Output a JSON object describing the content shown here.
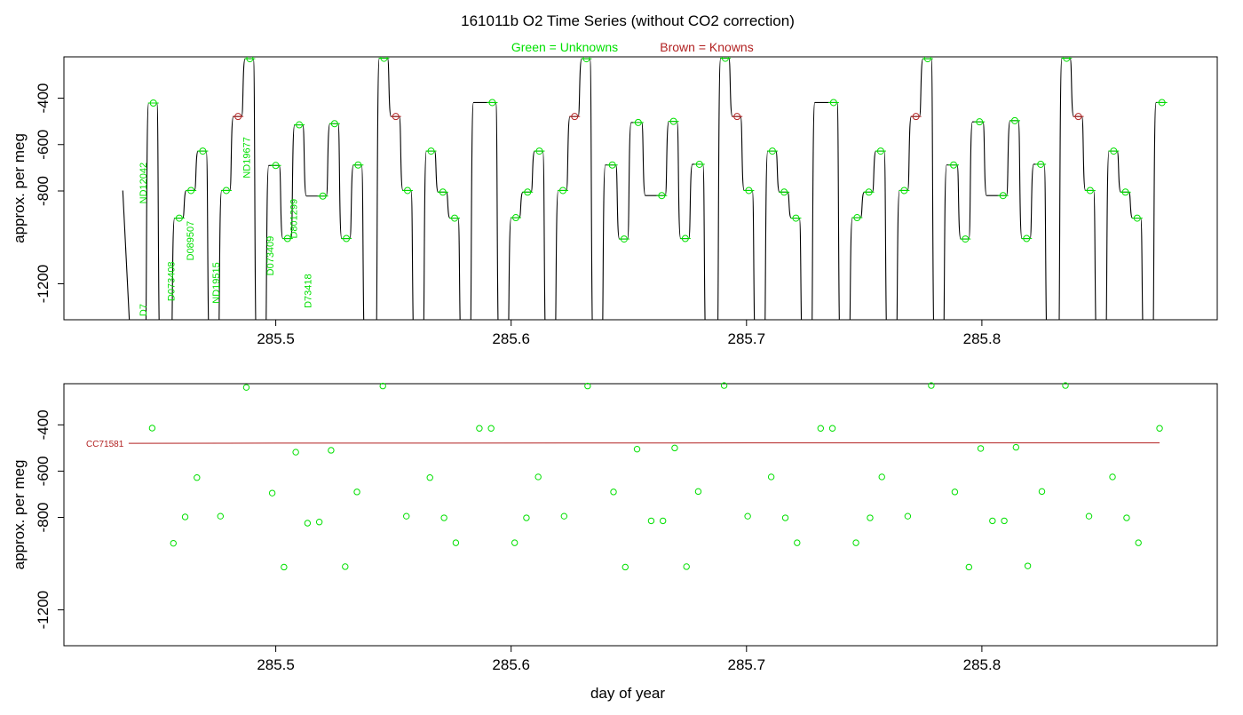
{
  "title": "161011b   O2 Time Series (without CO2 correction)",
  "legend": {
    "unknowns": "Green = Unknowns",
    "knowns": "Brown = Knowns"
  },
  "colors": {
    "unknown": "#00e000",
    "known": "#b22222",
    "trace": "#000000"
  },
  "xlabel": "day of year",
  "chart_data": [
    {
      "type": "line",
      "panel": "top",
      "ylabel": "approx. per meg",
      "xlim": [
        285.41,
        285.9
      ],
      "ylim": [
        -1355,
        -222
      ],
      "y_reversed": true,
      "xticks": [
        285.5,
        285.6,
        285.7,
        285.8
      ],
      "xtick_labels": [
        "285.5",
        "285.6",
        "285.7",
        "285.8"
      ],
      "yticks": [
        -400,
        -600,
        -800,
        -1200
      ],
      "ytick_labels": [
        "-400",
        "-600",
        "-800",
        "-1200"
      ],
      "trace_end_x": 285.878,
      "trace_start": {
        "x": 285.435,
        "y": -798
      },
      "segments": [
        {
          "x0": 285.4385,
          "x1": 285.4445,
          "y": -1500,
          "kind": "gap"
        },
        {
          "x0": 285.4445,
          "x1": 285.4495,
          "y": -421,
          "kind": "unknown"
        },
        {
          "x0": 285.4495,
          "x1": 285.4555,
          "y": -1500,
          "kind": "gap"
        },
        {
          "x0": 285.4555,
          "x1": 285.4605,
          "y": -917,
          "kind": "unknown"
        },
        {
          "x0": 285.4605,
          "x1": 285.4655,
          "y": -798,
          "kind": "unknown"
        },
        {
          "x0": 285.4655,
          "x1": 285.4705,
          "y": -628,
          "kind": "unknown"
        },
        {
          "x0": 285.4705,
          "x1": 285.4755,
          "y": -1500,
          "kind": "gap"
        },
        {
          "x0": 285.4755,
          "x1": 285.4805,
          "y": -798,
          "kind": "unknown"
        },
        {
          "x0": 285.4805,
          "x1": 285.4855,
          "y": -479,
          "kind": "known"
        },
        {
          "x0": 285.4855,
          "x1": 285.4905,
          "y": -230,
          "kind": "unknown"
        },
        {
          "x0": 285.4905,
          "x1": 285.4955,
          "y": -1500,
          "kind": "gap"
        },
        {
          "x0": 285.4955,
          "x1": 285.5015,
          "y": -690,
          "kind": "unknown"
        },
        {
          "x0": 285.5015,
          "x1": 285.5065,
          "y": -1005,
          "kind": "unknown"
        },
        {
          "x0": 285.5065,
          "x1": 285.5115,
          "y": -515,
          "kind": "unknown"
        },
        {
          "x0": 285.5115,
          "x1": 285.5215,
          "y": -822,
          "kind": "unknown"
        },
        {
          "x0": 285.5215,
          "x1": 285.5265,
          "y": -510,
          "kind": "unknown"
        },
        {
          "x0": 285.5265,
          "x1": 285.5315,
          "y": -1005,
          "kind": "unknown"
        },
        {
          "x0": 285.5315,
          "x1": 285.5365,
          "y": -688,
          "kind": "unknown"
        },
        {
          "x0": 285.5365,
          "x1": 285.5425,
          "y": -1500,
          "kind": "gap"
        },
        {
          "x0": 285.5425,
          "x1": 285.5475,
          "y": -228,
          "kind": "unknown"
        },
        {
          "x0": 285.5475,
          "x1": 285.5525,
          "y": -479,
          "kind": "known"
        },
        {
          "x0": 285.5525,
          "x1": 285.5575,
          "y": -798,
          "kind": "unknown"
        },
        {
          "x0": 285.5575,
          "x1": 285.5625,
          "y": -1500,
          "kind": "gap"
        },
        {
          "x0": 285.5625,
          "x1": 285.5675,
          "y": -628,
          "kind": "unknown"
        },
        {
          "x0": 285.5675,
          "x1": 285.5725,
          "y": -805,
          "kind": "unknown"
        },
        {
          "x0": 285.5725,
          "x1": 285.5775,
          "y": -917,
          "kind": "unknown"
        },
        {
          "x0": 285.5775,
          "x1": 285.5825,
          "y": -1500,
          "kind": "gap"
        },
        {
          "x0": 285.5825,
          "x1": 285.5935,
          "y": -419,
          "kind": "unknown"
        },
        {
          "x0": 285.5935,
          "x1": 285.5985,
          "y": -1500,
          "kind": "gap"
        },
        {
          "x0": 285.5985,
          "x1": 285.6035,
          "y": -915,
          "kind": "unknown"
        },
        {
          "x0": 285.6035,
          "x1": 285.6085,
          "y": -805,
          "kind": "unknown"
        },
        {
          "x0": 285.6085,
          "x1": 285.6135,
          "y": -628,
          "kind": "unknown"
        },
        {
          "x0": 285.6135,
          "x1": 285.6185,
          "y": -1500,
          "kind": "gap"
        },
        {
          "x0": 285.6185,
          "x1": 285.6235,
          "y": -798,
          "kind": "unknown"
        },
        {
          "x0": 285.6235,
          "x1": 285.6285,
          "y": -479,
          "kind": "known"
        },
        {
          "x0": 285.6285,
          "x1": 285.6335,
          "y": -230,
          "kind": "unknown"
        },
        {
          "x0": 285.6335,
          "x1": 285.6385,
          "y": -1500,
          "kind": "gap"
        },
        {
          "x0": 285.6385,
          "x1": 285.6445,
          "y": -688,
          "kind": "unknown"
        },
        {
          "x0": 285.6445,
          "x1": 285.6495,
          "y": -1007,
          "kind": "unknown"
        },
        {
          "x0": 285.6495,
          "x1": 285.6555,
          "y": -505,
          "kind": "unknown"
        },
        {
          "x0": 285.6555,
          "x1": 285.6655,
          "y": -820,
          "kind": "unknown"
        },
        {
          "x0": 285.6655,
          "x1": 285.6705,
          "y": -500,
          "kind": "unknown"
        },
        {
          "x0": 285.6705,
          "x1": 285.6755,
          "y": -1005,
          "kind": "unknown"
        },
        {
          "x0": 285.6755,
          "x1": 285.6815,
          "y": -685,
          "kind": "unknown"
        },
        {
          "x0": 285.6815,
          "x1": 285.6875,
          "y": -1500,
          "kind": "gap"
        },
        {
          "x0": 285.6875,
          "x1": 285.6925,
          "y": -228,
          "kind": "unknown"
        },
        {
          "x0": 285.6925,
          "x1": 285.6975,
          "y": -479,
          "kind": "known"
        },
        {
          "x0": 285.6975,
          "x1": 285.7025,
          "y": -798,
          "kind": "unknown"
        },
        {
          "x0": 285.7025,
          "x1": 285.7075,
          "y": -1500,
          "kind": "gap"
        },
        {
          "x0": 285.7075,
          "x1": 285.7125,
          "y": -628,
          "kind": "unknown"
        },
        {
          "x0": 285.7125,
          "x1": 285.7175,
          "y": -805,
          "kind": "unknown"
        },
        {
          "x0": 285.7175,
          "x1": 285.7225,
          "y": -917,
          "kind": "unknown"
        },
        {
          "x0": 285.7225,
          "x1": 285.7275,
          "y": -1500,
          "kind": "gap"
        },
        {
          "x0": 285.7275,
          "x1": 285.7385,
          "y": -419,
          "kind": "unknown"
        },
        {
          "x0": 285.7385,
          "x1": 285.7435,
          "y": -1500,
          "kind": "gap"
        },
        {
          "x0": 285.7435,
          "x1": 285.7485,
          "y": -915,
          "kind": "unknown"
        },
        {
          "x0": 285.7485,
          "x1": 285.7535,
          "y": -805,
          "kind": "unknown"
        },
        {
          "x0": 285.7535,
          "x1": 285.7585,
          "y": -628,
          "kind": "unknown"
        },
        {
          "x0": 285.7585,
          "x1": 285.7635,
          "y": -1500,
          "kind": "gap"
        },
        {
          "x0": 285.7635,
          "x1": 285.7685,
          "y": -798,
          "kind": "unknown"
        },
        {
          "x0": 285.7685,
          "x1": 285.7735,
          "y": -479,
          "kind": "known"
        },
        {
          "x0": 285.7735,
          "x1": 285.7785,
          "y": -230,
          "kind": "unknown"
        },
        {
          "x0": 285.7785,
          "x1": 285.7835,
          "y": -1500,
          "kind": "gap"
        },
        {
          "x0": 285.7835,
          "x1": 285.7895,
          "y": -688,
          "kind": "unknown"
        },
        {
          "x0": 285.7895,
          "x1": 285.7945,
          "y": -1007,
          "kind": "unknown"
        },
        {
          "x0": 285.7945,
          "x1": 285.8005,
          "y": -502,
          "kind": "unknown"
        },
        {
          "x0": 285.8005,
          "x1": 285.8105,
          "y": -820,
          "kind": "unknown"
        },
        {
          "x0": 285.8105,
          "x1": 285.8155,
          "y": -497,
          "kind": "unknown"
        },
        {
          "x0": 285.8155,
          "x1": 285.8205,
          "y": -1005,
          "kind": "unknown"
        },
        {
          "x0": 285.8205,
          "x1": 285.8265,
          "y": -685,
          "kind": "unknown"
        },
        {
          "x0": 285.8265,
          "x1": 285.8325,
          "y": -1500,
          "kind": "gap"
        },
        {
          "x0": 285.8325,
          "x1": 285.8375,
          "y": -228,
          "kind": "unknown"
        },
        {
          "x0": 285.8375,
          "x1": 285.8425,
          "y": -479,
          "kind": "known"
        },
        {
          "x0": 285.8425,
          "x1": 285.8475,
          "y": -798,
          "kind": "unknown"
        },
        {
          "x0": 285.8475,
          "x1": 285.8525,
          "y": -1500,
          "kind": "gap"
        },
        {
          "x0": 285.8525,
          "x1": 285.8575,
          "y": -628,
          "kind": "unknown"
        },
        {
          "x0": 285.8575,
          "x1": 285.8625,
          "y": -805,
          "kind": "unknown"
        },
        {
          "x0": 285.8625,
          "x1": 285.8675,
          "y": -917,
          "kind": "unknown"
        },
        {
          "x0": 285.8675,
          "x1": 285.8725,
          "y": -1500,
          "kind": "gap"
        },
        {
          "x0": 285.8725,
          "x1": 285.878,
          "y": -419,
          "kind": "unknown"
        }
      ],
      "sample_labels": [
        {
          "text": "ND12042",
          "x": 285.4435,
          "y": -855
        },
        {
          "text": "ND19677",
          "x": 285.4875,
          "y": -745
        },
        {
          "text": "D801299",
          "x": 285.5075,
          "y": -1005
        },
        {
          "text": "D089507",
          "x": 285.4635,
          "y": -1100
        },
        {
          "text": "D073409",
          "x": 285.4975,
          "y": -1165
        },
        {
          "text": "D073408",
          "x": 285.4555,
          "y": -1275
        },
        {
          "text": "ND19515",
          "x": 285.4745,
          "y": -1285
        },
        {
          "text": "D73418",
          "x": 285.5135,
          "y": -1305
        },
        {
          "text": "D7",
          "x": 285.4435,
          "y": -1340
        }
      ]
    },
    {
      "type": "scatter",
      "panel": "bottom",
      "ylabel": "approx. per meg",
      "xlim": [
        285.41,
        285.9
      ],
      "ylim": [
        -1355,
        -222
      ],
      "y_reversed": true,
      "xticks": [
        285.5,
        285.6,
        285.7,
        285.8
      ],
      "xtick_labels": [
        "285.5",
        "285.6",
        "285.7",
        "285.8"
      ],
      "yticks": [
        -400,
        -600,
        -800,
        -1200
      ],
      "ytick_labels": [
        "-400",
        "-600",
        "-800",
        "-1200"
      ],
      "known_series": {
        "name": "CC71581",
        "points": [
          {
            "x": 285.4375,
            "y": -480
          },
          {
            "x": 285.5,
            "y": -479
          },
          {
            "x": 285.7,
            "y": -478
          },
          {
            "x": 285.8755,
            "y": -478
          }
        ]
      },
      "unknown_points": [
        {
          "x": 285.4475,
          "y": -414
        },
        {
          "x": 285.4565,
          "y": -912
        },
        {
          "x": 285.4615,
          "y": -798
        },
        {
          "x": 285.4665,
          "y": -628
        },
        {
          "x": 285.4765,
          "y": -795
        },
        {
          "x": 285.4875,
          "y": -238
        },
        {
          "x": 285.4985,
          "y": -695
        },
        {
          "x": 285.5035,
          "y": -1015
        },
        {
          "x": 285.5085,
          "y": -518
        },
        {
          "x": 285.5135,
          "y": -825
        },
        {
          "x": 285.5185,
          "y": -820
        },
        {
          "x": 285.5235,
          "y": -510
        },
        {
          "x": 285.5295,
          "y": -1013
        },
        {
          "x": 285.5345,
          "y": -690
        },
        {
          "x": 285.5455,
          "y": -232
        },
        {
          "x": 285.5555,
          "y": -795
        },
        {
          "x": 285.5655,
          "y": -628
        },
        {
          "x": 285.5715,
          "y": -802
        },
        {
          "x": 285.5765,
          "y": -910
        },
        {
          "x": 285.5865,
          "y": -415
        },
        {
          "x": 285.5915,
          "y": -415
        },
        {
          "x": 285.6015,
          "y": -910
        },
        {
          "x": 285.6065,
          "y": -802
        },
        {
          "x": 285.6115,
          "y": -625
        },
        {
          "x": 285.6225,
          "y": -795
        },
        {
          "x": 285.6325,
          "y": -232
        },
        {
          "x": 285.6435,
          "y": -690
        },
        {
          "x": 285.6485,
          "y": -1015
        },
        {
          "x": 285.6535,
          "y": -505
        },
        {
          "x": 285.6595,
          "y": -815
        },
        {
          "x": 285.6645,
          "y": -815
        },
        {
          "x": 285.6695,
          "y": -500
        },
        {
          "x": 285.6745,
          "y": -1013
        },
        {
          "x": 285.6795,
          "y": -688
        },
        {
          "x": 285.6905,
          "y": -230
        },
        {
          "x": 285.7005,
          "y": -795
        },
        {
          "x": 285.7105,
          "y": -625
        },
        {
          "x": 285.7165,
          "y": -802
        },
        {
          "x": 285.7215,
          "y": -910
        },
        {
          "x": 285.7315,
          "y": -415
        },
        {
          "x": 285.7365,
          "y": -415
        },
        {
          "x": 285.7465,
          "y": -910
        },
        {
          "x": 285.7525,
          "y": -802
        },
        {
          "x": 285.7575,
          "y": -625
        },
        {
          "x": 285.7685,
          "y": -795
        },
        {
          "x": 285.7785,
          "y": -230
        },
        {
          "x": 285.7885,
          "y": -690
        },
        {
          "x": 285.7945,
          "y": -1015
        },
        {
          "x": 285.7995,
          "y": -502
        },
        {
          "x": 285.8045,
          "y": -815
        },
        {
          "x": 285.8095,
          "y": -815
        },
        {
          "x": 285.8145,
          "y": -497
        },
        {
          "x": 285.8195,
          "y": -1010
        },
        {
          "x": 285.8255,
          "y": -688
        },
        {
          "x": 285.8355,
          "y": -230
        },
        {
          "x": 285.8455,
          "y": -795
        },
        {
          "x": 285.8555,
          "y": -625
        },
        {
          "x": 285.8615,
          "y": -802
        },
        {
          "x": 285.8665,
          "y": -910
        },
        {
          "x": 285.8755,
          "y": -415
        }
      ]
    }
  ]
}
